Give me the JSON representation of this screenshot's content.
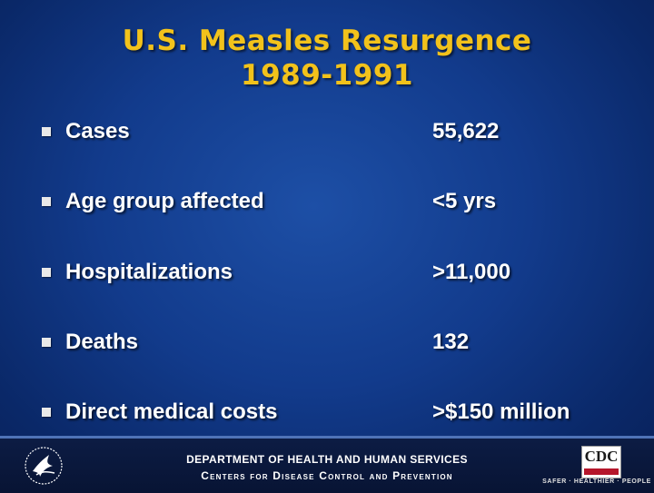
{
  "title": {
    "line1": "U.S. Measles Resurgence",
    "line2": "1989-1991"
  },
  "rows": [
    {
      "label": "Cases",
      "value": "55,622"
    },
    {
      "label": "Age group affected",
      "value": "<5 yrs"
    },
    {
      "label": "Hospitalizations",
      "value": ">11,000"
    },
    {
      "label": "Deaths",
      "value": "132"
    },
    {
      "label": "Direct medical costs",
      "value": ">$150 million"
    }
  ],
  "footer": {
    "department": "DEPARTMENT OF HEALTH AND HUMAN SERVICES",
    "centers": "Centers for Disease Control and Prevention",
    "cdc_logo_text": "CDC",
    "tagline": "SAFER · HEALTHIER · PEOPLE"
  },
  "colors": {
    "title": "#f2c21b",
    "text": "#ffffff",
    "background": "#123b8c"
  }
}
